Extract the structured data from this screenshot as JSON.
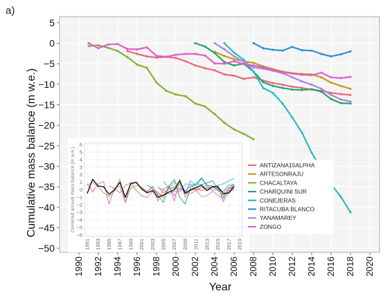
{
  "panel_label": "a)",
  "chart_data": {
    "type": "line",
    "xlabel": "Year",
    "ylabel": "Cumulative mass balance (m w.e.)",
    "xlim": [
      1988,
      2021
    ],
    "ylim": [
      -51,
      6.5
    ],
    "xticks": [
      1990,
      1992,
      1994,
      1996,
      1998,
      2000,
      2002,
      2004,
      2006,
      2008,
      2010,
      2012,
      2014,
      2016,
      2018,
      2020
    ],
    "yticks": [
      5,
      0,
      -5,
      -10,
      -15,
      -20,
      -25,
      -30,
      -35,
      -40,
      -45,
      -50
    ],
    "grid": true,
    "legend_position": "lower-right",
    "series": [
      {
        "name": "ANTIZANA15ALPHA",
        "color": "#e8697a",
        "x": [
          1995,
          1996,
          1997,
          1998,
          1999,
          2000,
          2001,
          2002,
          2003,
          2004,
          2005,
          2006,
          2007,
          2008,
          2009,
          2010,
          2011,
          2012,
          2013,
          2014,
          2015,
          2016,
          2017,
          2018
        ],
        "y": [
          -1.9,
          -2.6,
          -3.2,
          -3.5,
          -3.3,
          -3.6,
          -4.4,
          -5.4,
          -6.1,
          -6.6,
          -7.6,
          -7.9,
          -8.7,
          -8.3,
          -9.1,
          -9.7,
          -10.1,
          -10.6,
          -10.9,
          -11.3,
          -11.6,
          -12.1,
          -12.4,
          -12.6
        ]
      },
      {
        "name": "ARTESONRAJU",
        "color": "#c39a1a",
        "x": [
          2004,
          2005,
          2006,
          2007,
          2008,
          2009,
          2010,
          2011,
          2012,
          2013,
          2014,
          2015,
          2016,
          2017,
          2018
        ],
        "y": [
          -2.1,
          -3.1,
          -3.9,
          -4.4,
          -4.8,
          -5.6,
          -6.3,
          -6.9,
          -7.3,
          -7.5,
          -7.6,
          -8.3,
          -9.6,
          -10.4,
          -11.1
        ]
      },
      {
        "name": "CHACALTAYA",
        "color": "#86b233",
        "x": [
          1991,
          1992,
          1993,
          1994,
          1995,
          1996,
          1997,
          1998,
          1999,
          2000,
          2001,
          2002,
          2003,
          2004,
          2005,
          2006,
          2007,
          2008
        ],
        "y": [
          -0.7,
          -0.5,
          -1.1,
          -1.9,
          -3.4,
          -5.2,
          -6.0,
          -9.6,
          -11.6,
          -12.5,
          -12.9,
          -14.7,
          -15.4,
          -17.3,
          -19.4,
          -21.0,
          -22.1,
          -23.4
        ]
      },
      {
        "name": "CHARQUINI SUR",
        "color": "#26a36e",
        "x": [
          2002,
          2003,
          2004,
          2005,
          2006,
          2007,
          2008,
          2009,
          2010,
          2011,
          2012,
          2013,
          2014,
          2015,
          2016,
          2017,
          2018
        ],
        "y": [
          0.0,
          -0.8,
          -2.4,
          -4.6,
          -5.4,
          -5.0,
          -6.9,
          -9.5,
          -10.4,
          -10.9,
          -11.3,
          -11.4,
          -11.2,
          -11.8,
          -13.6,
          -14.6,
          -14.7
        ]
      },
      {
        "name": "CONEJERAS",
        "color": "#29bcc0",
        "x": [
          2005,
          2006,
          2007,
          2008,
          2009,
          2010,
          2011,
          2012,
          2013,
          2014,
          2015,
          2016,
          2017,
          2018
        ],
        "y": [
          0.0,
          -2.3,
          -4.0,
          -6.9,
          -10.9,
          -12.1,
          -14.7,
          -18.1,
          -21.8,
          -26.7,
          -30.6,
          -34.4,
          -37.4,
          -41.2
        ]
      },
      {
        "name": "RITACUBA BLANCO",
        "color": "#2f93d0",
        "x": [
          2008,
          2009,
          2010,
          2011,
          2012,
          2013,
          2014,
          2015,
          2016,
          2017,
          2018
        ],
        "y": [
          0.0,
          -1.2,
          -1.6,
          -1.8,
          -0.9,
          -1.7,
          -1.8,
          -2.6,
          -3.2,
          -2.7,
          -2.0
        ]
      },
      {
        "name": "YANAMAREY",
        "color": "#a985e0",
        "x": [
          2004,
          2005,
          2006,
          2007,
          2008,
          2009,
          2010,
          2011,
          2012,
          2013,
          2014,
          2015,
          2016,
          2017,
          2018
        ],
        "y": [
          0.0,
          -1.5,
          -3.2,
          -4.5,
          -5.9,
          -6.2,
          -6.7,
          -7.3,
          -8.3,
          -9.3,
          -10.1,
          -11.1,
          -12.6,
          -13.7,
          -14.2
        ]
      },
      {
        "name": "ZONGO",
        "color": "#e05ec9",
        "x": [
          1991,
          1992,
          1993,
          1994,
          1995,
          1996,
          1997,
          1998,
          1999,
          2000,
          2001,
          2002,
          2003,
          2004,
          2005,
          2006,
          2007,
          2008,
          2009,
          2010,
          2011,
          2012,
          2013,
          2014,
          2015,
          2016,
          2017,
          2018
        ],
        "y": [
          0.0,
          -1.2,
          -0.3,
          -0.2,
          -1.4,
          -1.5,
          -1.0,
          -3.1,
          -3.3,
          -2.8,
          -2.6,
          -2.6,
          -3.0,
          -4.9,
          -5.0,
          -4.4,
          -5.1,
          -5.4,
          -5.9,
          -6.5,
          -7.1,
          -7.4,
          -7.7,
          -7.8,
          -7.2,
          -8.3,
          -8.5,
          -8.2
        ]
      }
    ],
    "inset": {
      "ylabel": "Centered annual mass balance (m w.e.)",
      "xlim": [
        1990.5,
        2019.5
      ],
      "ylim": [
        -6.2,
        6.2
      ],
      "xticks": [
        1991,
        1993,
        1995,
        1997,
        1999,
        2001,
        2003,
        2005,
        2007,
        2009,
        2011,
        2013,
        2015,
        2017,
        2019
      ],
      "yticks": [
        6,
        5,
        4,
        3,
        2,
        1,
        0,
        -1,
        -2,
        -3,
        -4,
        -5,
        -6
      ],
      "series": [
        {
          "name": "ANTIZANA15ALPHA",
          "color": "#e8697a",
          "x": [
            1995,
            1996,
            1997,
            1998,
            1999,
            2000,
            2001,
            2002,
            2003,
            2004,
            2005,
            2006,
            2007,
            2008,
            2009,
            2010,
            2011,
            2012,
            2013,
            2014,
            2015,
            2016,
            2017,
            2018
          ],
          "y": [
            0.5,
            0.2,
            -0.4,
            0.6,
            0.9,
            -0.1,
            -0.8,
            -1.0,
            -0.2,
            -0.3,
            -1.1,
            0.6,
            -1.5,
            1.4,
            -1.0,
            0.0,
            0.1,
            -0.1,
            0.3,
            -0.1,
            0.2,
            -0.5,
            0.3,
            0.1
          ]
        },
        {
          "name": "ARTESONRAJU",
          "color": "#c39a1a",
          "x": [
            2004,
            2005,
            2006,
            2007,
            2008,
            2009,
            2010,
            2011,
            2012,
            2013,
            2014,
            2015,
            2016,
            2017,
            2018
          ],
          "y": [
            0.4,
            -0.4,
            0.1,
            0.4,
            0.2,
            -0.3,
            -0.1,
            0.1,
            0.3,
            0.6,
            0.5,
            -0.1,
            -0.7,
            -0.1,
            0.0
          ]
        },
        {
          "name": "CHACALTAYA",
          "color": "#86b233",
          "x": [
            1991,
            1992,
            1993,
            1994,
            1995,
            1996,
            1997,
            1998,
            1999,
            2000,
            2001,
            2002,
            2003,
            2004,
            2005,
            2006,
            2007,
            2008
          ],
          "y": [
            0.6,
            1.0,
            0.4,
            -0.4,
            -0.9,
            -0.2,
            1.4,
            -1.7,
            0.2,
            0.6,
            0.4,
            -0.3,
            0.5,
            -0.6,
            -0.8,
            0.2,
            0.2,
            0.0
          ]
        },
        {
          "name": "CHARQUINI SUR",
          "color": "#26a36e",
          "x": [
            2002,
            2003,
            2004,
            2005,
            2006,
            2007,
            2008,
            2009,
            2010,
            2011,
            2012,
            2013,
            2014,
            2015,
            2016,
            2017,
            2018
          ],
          "y": [
            0.6,
            0.2,
            -0.7,
            -1.7,
            0.5,
            1.4,
            -1.0,
            -1.9,
            0.3,
            0.8,
            0.7,
            0.9,
            1.2,
            0.1,
            -1.0,
            0.1,
            0.8
          ]
        },
        {
          "name": "CONEJERAS",
          "color": "#29bcc0",
          "x": [
            2005,
            2006,
            2007,
            2008,
            2009,
            2010,
            2011,
            2012,
            2013,
            2014,
            2015,
            2016,
            2017,
            2018
          ],
          "y": [
            1.1,
            0.2,
            1.0,
            0.6,
            -0.5,
            1.2,
            0.5,
            1.5,
            0.5,
            0.2,
            0.6,
            0.8,
            1.2,
            1.5
          ]
        },
        {
          "name": "RITACUBA BLANCO",
          "color": "#2f93d0",
          "x": [
            2008,
            2009,
            2010,
            2011,
            2012,
            2013,
            2014,
            2015,
            2016,
            2017,
            2018
          ],
          "y": [
            0.9,
            -0.2,
            0.6,
            0.8,
            1.6,
            0.6,
            0.5,
            0.0,
            -0.2,
            0.6,
            0.7
          ]
        },
        {
          "name": "YANAMAREY",
          "color": "#a985e0",
          "x": [
            2004,
            2005,
            2006,
            2007,
            2008,
            2009,
            2010,
            2011,
            2012,
            2013,
            2014,
            2015,
            2016,
            2017,
            2018
          ],
          "y": [
            0.3,
            0.0,
            -0.6,
            -0.2,
            -0.3,
            0.8,
            0.7,
            -0.1,
            -0.9,
            -0.8,
            -0.2,
            -0.7,
            -1.2,
            -0.5,
            0.2
          ]
        },
        {
          "name": "ZONGO",
          "color": "#e05ec9",
          "x": [
            1991,
            1992,
            1993,
            1994,
            1995,
            1996,
            1997,
            1998,
            1999,
            2000,
            2001,
            2002,
            2003,
            2004,
            2005,
            2006,
            2007,
            2008,
            2009,
            2010,
            2011,
            2012,
            2013,
            2014,
            2015,
            2016,
            2017,
            2018
          ],
          "y": [
            0.8,
            -0.3,
            0.8,
            1.1,
            -1.9,
            0.2,
            0.5,
            -1.7,
            1.0,
            0.9,
            0.2,
            -0.2,
            0.3,
            -1.5,
            0.1,
            0.5,
            -0.8,
            0.1,
            -0.1,
            -0.5,
            -0.1,
            0.3,
            0.2,
            0.4,
            0.6,
            -1.6,
            0.1,
            0.5
          ]
        },
        {
          "name": "mean",
          "color": "#111111",
          "x": [
            1991,
            1992,
            1993,
            1994,
            1995,
            1996,
            1997,
            1998,
            1999,
            2000,
            2001,
            2002,
            2003,
            2004,
            2005,
            2006,
            2007,
            2008,
            2009,
            2010,
            2011,
            2012,
            2013,
            2014,
            2015,
            2016,
            2017,
            2018
          ],
          "y": [
            -0.5,
            1.4,
            0.5,
            0.4,
            -0.6,
            0.0,
            1.0,
            -1.0,
            0.8,
            1.0,
            0.1,
            -0.4,
            -0.1,
            -1.0,
            -0.7,
            -0.3,
            0.0,
            1.2,
            -0.5,
            0.0,
            0.3,
            0.6,
            -0.1,
            0.4,
            0.4,
            -0.5,
            -0.4,
            0.5
          ]
        }
      ]
    }
  }
}
